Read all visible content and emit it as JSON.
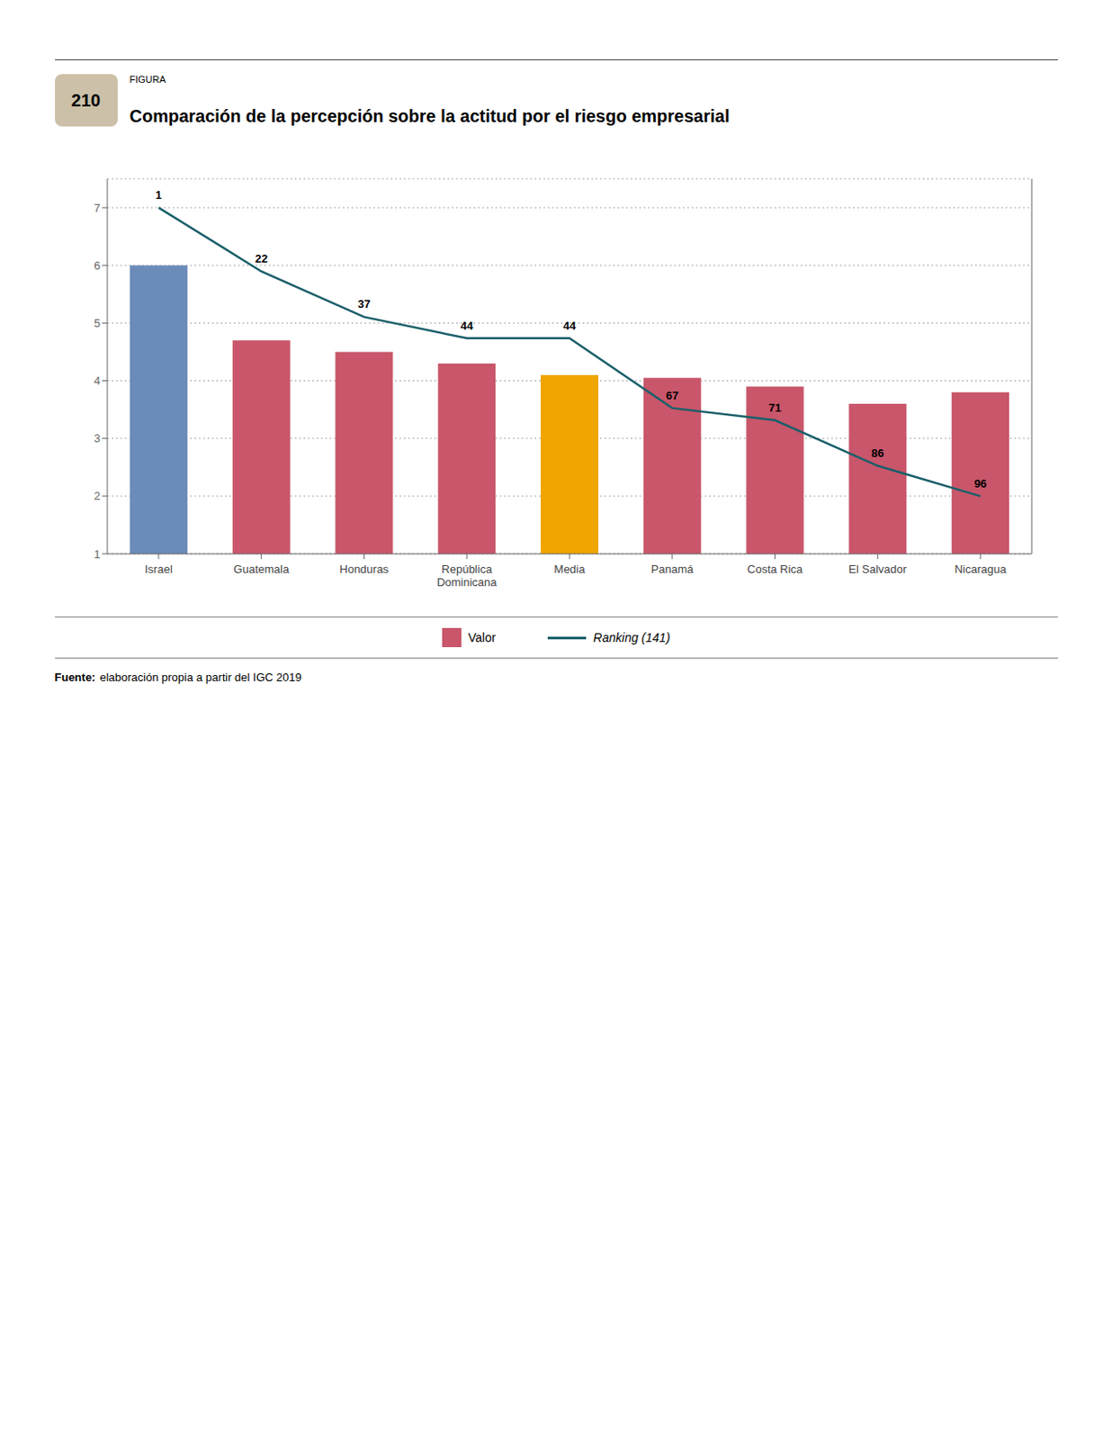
{
  "chart_data": {
    "type": "bar",
    "title": "Comparación de la percepción sobre la actitud por el riesgo empresarial",
    "annotations": [
      "FIGURA",
      "210",
      "Fuente:",
      "elaboración propia a partir del IGC 2019"
    ],
    "categories": [
      "Israel",
      "Guatemala",
      "Honduras",
      "República\nDominicana",
      "Media",
      "Panamá",
      "Costa Rica",
      "El Salvador",
      "Nicaragua"
    ],
    "series": [
      {
        "name": "Valor",
        "type": "bar",
        "color": "#c9566a",
        "colors": [
          "#6b8cba",
          "#c9566a",
          "#c9566a",
          "#c9566a",
          "#f0a500",
          "#c9566a",
          "#c9566a",
          "#c9566a",
          "#c9566a"
        ],
        "values": [
          6.0,
          4.7,
          4.5,
          4.3,
          4.1,
          4.05,
          3.9,
          3.6,
          3.8
        ]
      },
      {
        "name": "Ranking (141)",
        "type": "line",
        "axis": "y2",
        "color": "#1a5f6a",
        "values": [
          1,
          22,
          37,
          44,
          44,
          67,
          71,
          86,
          96
        ],
        "data_labels": true
      }
    ],
    "ylim": [
      1,
      7.5
    ],
    "yticks": [
      1,
      2,
      3,
      4,
      5,
      6,
      7
    ],
    "y2lim": [
      115,
      -8.5
    ],
    "y2ticks": [],
    "grid": true,
    "legend": "bottom"
  }
}
